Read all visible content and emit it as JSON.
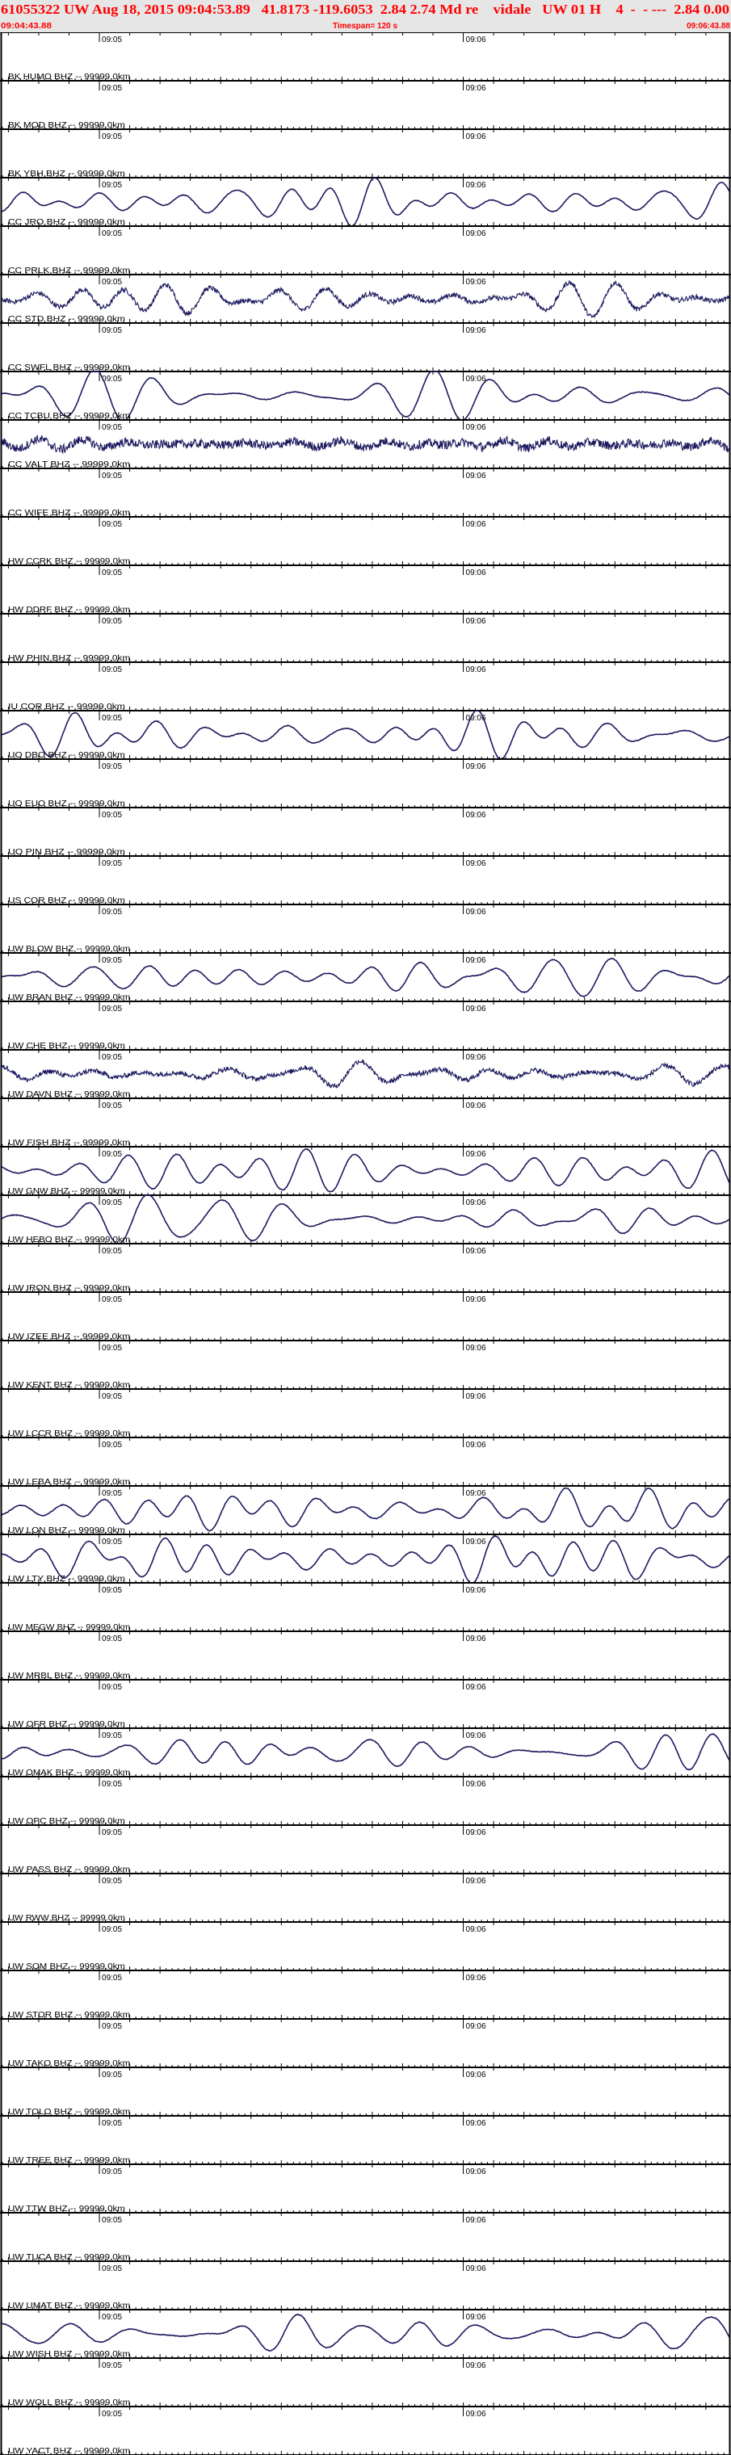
{
  "header": {
    "title": "61055322 UW Aug 18, 2015 09:04:53.89   41.8173 -119.6053  2.84 2.74 Md re    vidale   UW 01 H    4  -  - ---  2.84 0.00",
    "start_time": "09:04:43.88",
    "timespan": "Timespan= 120 s",
    "end_time": "09:06:43.88"
  },
  "time_axis": {
    "start_seconds_of_hour": 283.88,
    "span_seconds": 120,
    "minute_labels": [
      {
        "label": "09:05",
        "seconds_of_hour": 300
      },
      {
        "label": "09:06",
        "seconds_of_hour": 360
      }
    ]
  },
  "colors": {
    "header_text": "#ff0000",
    "header_bg": "#e6e6e6",
    "trace": "#1c1a5e",
    "axis": "#000000"
  },
  "stations": [
    {
      "label": "BK HUMO BHZ -- 99999.0km",
      "trace": "none"
    },
    {
      "label": "BK MOD BHZ -- 99999.0km",
      "trace": "none"
    },
    {
      "label": "BK YBH BHZ -- 99999.0km",
      "trace": "smooth"
    },
    {
      "label": "CC JRO BHZ -- 99999.0km",
      "trace": "none"
    },
    {
      "label": "CC PRLK BHZ -- 99999.0km",
      "trace": "noisy"
    },
    {
      "label": "CC STD BHZ -- 99999.0km",
      "trace": "none"
    },
    {
      "label": "CC SWFL BHZ -- 99999.0km",
      "trace": "smooth"
    },
    {
      "label": "CC TCBU BHZ -- 99999.0km",
      "trace": "very-noisy"
    },
    {
      "label": "CC VALT BHZ -- 99999.0km",
      "trace": "none"
    },
    {
      "label": "CC WIFE BHZ -- 99999.0km",
      "trace": "none"
    },
    {
      "label": "HW CCRK BHZ -- 99999.0km",
      "trace": "none"
    },
    {
      "label": "HW DDRF BHZ -- 99999.0km",
      "trace": "none"
    },
    {
      "label": "HW PHIN BHZ -- 99999.0km",
      "trace": "none"
    },
    {
      "label": "IU COR BHZ -- 99999.0km",
      "trace": "smooth"
    },
    {
      "label": "UO DBO BHZ -- 99999.0km",
      "trace": "none"
    },
    {
      "label": "UO EUO BHZ -- 99999.0km",
      "trace": "none"
    },
    {
      "label": "UO PIN BHZ -- 99999.0km",
      "trace": "none"
    },
    {
      "label": "US COR BHZ -- 99999.0km",
      "trace": "none"
    },
    {
      "label": "UW BLOW BHZ -- 99999.0km",
      "trace": "smooth"
    },
    {
      "label": "UW BRAN BHZ -- 99999.0km",
      "trace": "none"
    },
    {
      "label": "UW CHE BHZ -- 99999.0km",
      "trace": "noisy"
    },
    {
      "label": "UW DAVN BHZ -- 99999.0km",
      "trace": "none"
    },
    {
      "label": "UW FISH BHZ -- 99999.0km",
      "trace": "smooth"
    },
    {
      "label": "UW GNW BHZ -- 99999.0km",
      "trace": "smooth"
    },
    {
      "label": "UW HEBO BHZ -- 99999.0km",
      "trace": "none"
    },
    {
      "label": "UW IRON BHZ -- 99999.0km",
      "trace": "none"
    },
    {
      "label": "UW IZEE BHZ -- 99999.0km",
      "trace": "none"
    },
    {
      "label": "UW KENT BHZ -- 99999.0km",
      "trace": "none"
    },
    {
      "label": "UW LCCR BHZ -- 99999.0km",
      "trace": "none"
    },
    {
      "label": "UW LEBA BHZ -- 99999.0km",
      "trace": "smooth"
    },
    {
      "label": "UW LON BHZ -- 99999.0km",
      "trace": "smooth"
    },
    {
      "label": "UW LTY BHZ -- 99999.0km",
      "trace": "none"
    },
    {
      "label": "UW MEGW BHZ -- 99999.0km",
      "trace": "none"
    },
    {
      "label": "UW MRBL BHZ -- 99999.0km",
      "trace": "none"
    },
    {
      "label": "UW OFR BHZ -- 99999.0km",
      "trace": "smooth"
    },
    {
      "label": "UW OMAK BHZ -- 99999.0km",
      "trace": "none"
    },
    {
      "label": "UW OPC BHZ -- 99999.0km",
      "trace": "none"
    },
    {
      "label": "UW PASS BHZ -- 99999.0km",
      "trace": "none"
    },
    {
      "label": "UW RWW BHZ -- 99999.0km",
      "trace": "none"
    },
    {
      "label": "UW SQM BHZ -- 99999.0km",
      "trace": "none"
    },
    {
      "label": "UW STOR BHZ -- 99999.0km",
      "trace": "none"
    },
    {
      "label": "UW TAKO BHZ -- 99999.0km",
      "trace": "none"
    },
    {
      "label": "UW TOLO BHZ -- 99999.0km",
      "trace": "none"
    },
    {
      "label": "UW TREE BHZ -- 99999.0km",
      "trace": "none"
    },
    {
      "label": "UW TTW BHZ -- 99999.0km",
      "trace": "none"
    },
    {
      "label": "UW TUCA BHZ -- 99999.0km",
      "trace": "none"
    },
    {
      "label": "UW UMAT BHZ -- 99999.0km",
      "trace": "smooth"
    },
    {
      "label": "UW WISH BHZ -- 99999.0km",
      "trace": "none"
    },
    {
      "label": "UW WOLL BHZ -- 99999.0km",
      "trace": "none"
    },
    {
      "label": "UW YACT BHZ -- 99999.0km",
      "trace": "none"
    }
  ]
}
